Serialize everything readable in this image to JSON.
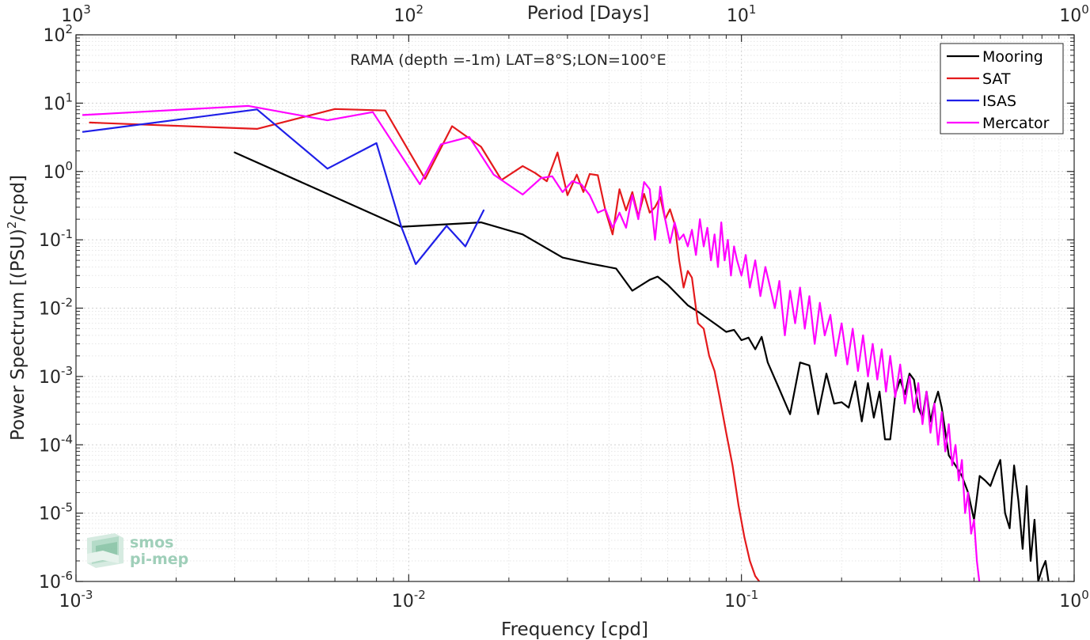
{
  "chart_data": {
    "type": "line",
    "title": "RAMA (depth =-1m) LAT=8°S;LON=100°E",
    "xlabel": "Frequency [cpd]",
    "ylabel_parts": {
      "main": "Power Spectrum [(PSU)",
      "sup": "2",
      "tail": "/cpd]"
    },
    "x2label": "Period [Days]",
    "xscale": "log",
    "yscale": "log",
    "xlim": [
      0.001,
      1
    ],
    "ylim": [
      1e-06,
      100
    ],
    "grid": true,
    "legend_position": "top-right",
    "x_ticks": [
      {
        "base": "10",
        "exp": "-3",
        "value": 0.001
      },
      {
        "base": "10",
        "exp": "-2",
        "value": 0.01
      },
      {
        "base": "10",
        "exp": "-1",
        "value": 0.1
      },
      {
        "base": "10",
        "exp": "0",
        "value": 1
      }
    ],
    "x2_ticks": [
      {
        "base": "10",
        "exp": "3",
        "value": 0.001
      },
      {
        "base": "10",
        "exp": "2",
        "value": 0.01
      },
      {
        "base": "10",
        "exp": "1",
        "value": 0.1
      },
      {
        "base": "10",
        "exp": "0",
        "value": 1
      }
    ],
    "y_ticks": [
      {
        "base": "10",
        "exp": "2",
        "value": 100
      },
      {
        "base": "10",
        "exp": "1",
        "value": 10
      },
      {
        "base": "10",
        "exp": "0",
        "value": 1
      },
      {
        "base": "10",
        "exp": "-1",
        "value": 0.1
      },
      {
        "base": "10",
        "exp": "-2",
        "value": 0.01
      },
      {
        "base": "10",
        "exp": "-3",
        "value": 0.001
      },
      {
        "base": "10",
        "exp": "-4",
        "value": 0.0001
      },
      {
        "base": "10",
        "exp": "-5",
        "value": 1e-05
      },
      {
        "base": "10",
        "exp": "-6",
        "value": 1e-06
      }
    ],
    "series": [
      {
        "name": "Mooring",
        "color": "#000000",
        "x": [
          0.003,
          0.0095,
          0.0165,
          0.022,
          0.029,
          0.035,
          0.042,
          0.047,
          0.053,
          0.056,
          0.06,
          0.064,
          0.069,
          0.075,
          0.08,
          0.085,
          0.09,
          0.095,
          0.1,
          0.105,
          0.11,
          0.115,
          0.12,
          0.13,
          0.14,
          0.15,
          0.16,
          0.17,
          0.18,
          0.19,
          0.2,
          0.21,
          0.22,
          0.23,
          0.24,
          0.25,
          0.26,
          0.27,
          0.28,
          0.29,
          0.3,
          0.31,
          0.32,
          0.33,
          0.34,
          0.35,
          0.36,
          0.37,
          0.38,
          0.39,
          0.4,
          0.42,
          0.44,
          0.46,
          0.48,
          0.5,
          0.52,
          0.54,
          0.56,
          0.58,
          0.6,
          0.62,
          0.64,
          0.66,
          0.68,
          0.7,
          0.72,
          0.74,
          0.76,
          0.78,
          0.8,
          0.82,
          0.84,
          0.86
        ],
        "values": [
          1.9,
          0.155,
          0.18,
          0.12,
          0.055,
          0.045,
          0.038,
          0.018,
          0.026,
          0.029,
          0.022,
          0.016,
          0.011,
          0.0085,
          0.0068,
          0.0055,
          0.0045,
          0.0048,
          0.0034,
          0.0037,
          0.0025,
          0.0038,
          0.0016,
          0.00065,
          0.00028,
          0.0016,
          0.00145,
          0.00028,
          0.0011,
          0.0004,
          0.00042,
          0.00035,
          0.00085,
          0.00022,
          0.0008,
          0.00025,
          0.0006,
          0.00012,
          0.00012,
          0.00055,
          0.0009,
          0.00055,
          0.0011,
          0.0009,
          0.00035,
          0.00025,
          0.0006,
          0.00022,
          0.0004,
          0.0006,
          0.00035,
          7e-05,
          5e-05,
          3.5e-05,
          2e-05,
          8e-06,
          3.5e-05,
          3e-05,
          2.5e-05,
          4e-05,
          6e-05,
          1e-05,
          6e-06,
          5e-05,
          1.5e-05,
          3e-06,
          2.5e-05,
          2e-06,
          8e-06,
          1e-06,
          1.5e-06,
          2e-06,
          9e-07,
          1e-06
        ]
      },
      {
        "name": "SAT",
        "color": "#e41a1c",
        "x": [
          0.0011,
          0.0035,
          0.006,
          0.0085,
          0.0112,
          0.0135,
          0.0165,
          0.019,
          0.022,
          0.024,
          0.026,
          0.028,
          0.03,
          0.032,
          0.0335,
          0.035,
          0.037,
          0.039,
          0.041,
          0.043,
          0.045,
          0.047,
          0.049,
          0.051,
          0.053,
          0.055,
          0.057,
          0.059,
          0.061,
          0.063,
          0.065,
          0.067,
          0.069,
          0.071,
          0.074,
          0.077,
          0.08,
          0.083,
          0.086,
          0.09,
          0.094,
          0.098,
          0.102,
          0.106,
          0.11,
          0.115,
          0.12,
          0.125
        ],
        "values": [
          5.2,
          4.2,
          8.2,
          7.8,
          0.78,
          4.6,
          2.3,
          0.75,
          1.2,
          0.95,
          0.72,
          1.9,
          0.45,
          0.9,
          0.5,
          0.92,
          0.88,
          0.27,
          0.12,
          0.55,
          0.27,
          0.5,
          0.22,
          0.47,
          0.25,
          0.3,
          0.42,
          0.2,
          0.28,
          0.17,
          0.05,
          0.02,
          0.035,
          0.028,
          0.006,
          0.005,
          0.002,
          0.0012,
          0.0005,
          0.00015,
          5e-05,
          1.3e-05,
          4.5e-06,
          2e-06,
          1.2e-06,
          9e-07,
          9e-07,
          9e-07
        ]
      },
      {
        "name": "ISAS",
        "color": "#1f1fe8",
        "x": [
          0.00105,
          0.0035,
          0.0057,
          0.008,
          0.0095,
          0.0105,
          0.013,
          0.0148,
          0.0168
        ],
        "values": [
          3.8,
          8.1,
          1.1,
          2.6,
          0.155,
          0.044,
          0.16,
          0.08,
          0.27
        ]
      },
      {
        "name": "Mercator",
        "color": "#ff00ff",
        "x": [
          0.00105,
          0.0033,
          0.0057,
          0.0078,
          0.0108,
          0.0125,
          0.0152,
          0.018,
          0.022,
          0.025,
          0.027,
          0.029,
          0.031,
          0.033,
          0.035,
          0.037,
          0.039,
          0.041,
          0.043,
          0.045,
          0.047,
          0.049,
          0.051,
          0.053,
          0.055,
          0.057,
          0.059,
          0.061,
          0.063,
          0.065,
          0.067,
          0.069,
          0.071,
          0.073,
          0.075,
          0.077,
          0.079,
          0.081,
          0.083,
          0.085,
          0.087,
          0.089,
          0.091,
          0.093,
          0.095,
          0.097,
          0.1,
          0.103,
          0.106,
          0.11,
          0.114,
          0.118,
          0.122,
          0.126,
          0.13,
          0.135,
          0.14,
          0.145,
          0.15,
          0.155,
          0.16,
          0.166,
          0.172,
          0.178,
          0.185,
          0.192,
          0.2,
          0.208,
          0.216,
          0.224,
          0.232,
          0.24,
          0.248,
          0.256,
          0.264,
          0.272,
          0.28,
          0.29,
          0.3,
          0.31,
          0.32,
          0.33,
          0.34,
          0.35,
          0.36,
          0.37,
          0.38,
          0.39,
          0.4,
          0.41,
          0.42,
          0.43,
          0.44,
          0.45,
          0.46,
          0.47,
          0.48,
          0.49,
          0.5,
          0.51,
          0.52
        ],
        "values": [
          6.7,
          9.1,
          5.6,
          7.4,
          0.65,
          2.5,
          3.2,
          0.9,
          0.46,
          0.8,
          0.85,
          0.5,
          0.72,
          0.65,
          0.45,
          0.25,
          0.28,
          0.15,
          0.25,
          0.15,
          0.45,
          0.2,
          0.7,
          0.55,
          0.1,
          0.6,
          0.2,
          0.09,
          0.18,
          0.1,
          0.12,
          0.08,
          0.14,
          0.06,
          0.2,
          0.08,
          0.15,
          0.05,
          0.12,
          0.04,
          0.18,
          0.05,
          0.1,
          0.03,
          0.08,
          0.05,
          0.03,
          0.06,
          0.02,
          0.05,
          0.015,
          0.04,
          0.02,
          0.01,
          0.025,
          0.004,
          0.018,
          0.006,
          0.02,
          0.005,
          0.015,
          0.003,
          0.012,
          0.004,
          0.008,
          0.002,
          0.006,
          0.0015,
          0.005,
          0.0012,
          0.004,
          0.001,
          0.003,
          0.0009,
          0.0025,
          0.0006,
          0.002,
          0.0005,
          0.0015,
          0.0004,
          0.001,
          0.0003,
          0.0008,
          0.0002,
          0.0006,
          0.00015,
          0.0004,
          0.0001,
          0.0003,
          8e-05,
          0.0002,
          5e-05,
          0.0001,
          3e-05,
          6e-05,
          1e-05,
          2e-05,
          5e-06,
          8e-06,
          2e-06,
          9e-07
        ]
      }
    ]
  },
  "logo": {
    "line1": "smos",
    "line2": "pi-mep"
  }
}
